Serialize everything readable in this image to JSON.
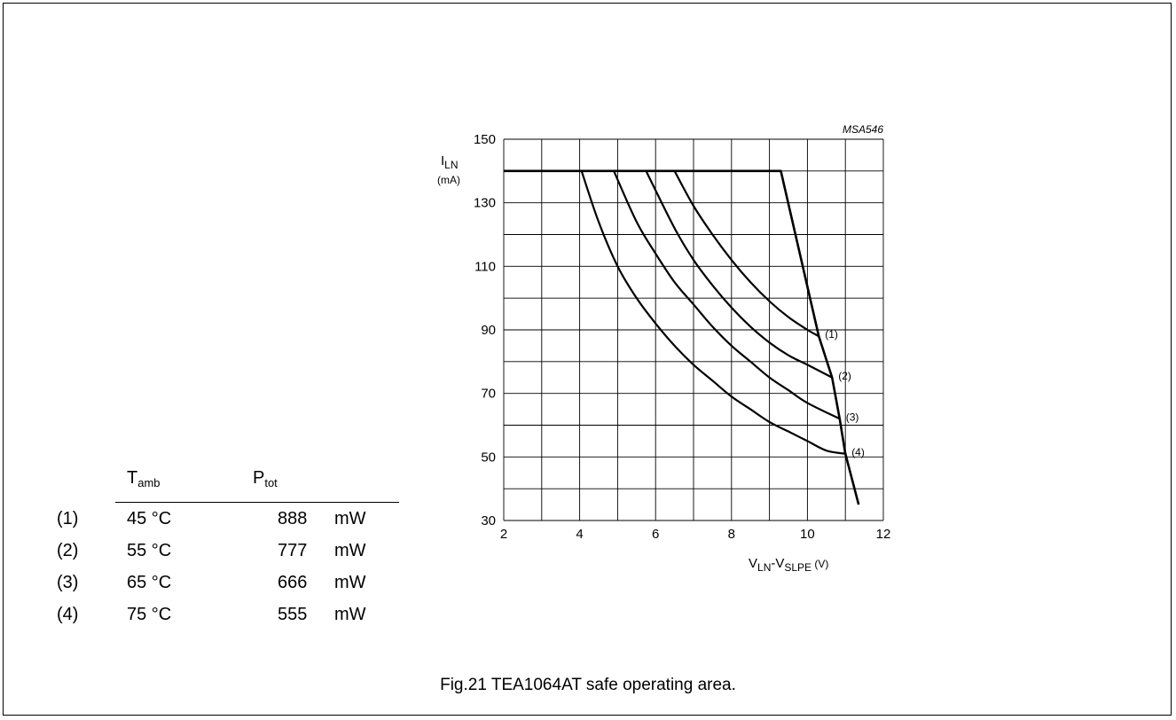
{
  "chart_data": {
    "type": "line",
    "title": "",
    "code": "MSA546",
    "ylabel": {
      "main": "I",
      "sub": "LN",
      "unit": "(mA)"
    },
    "xlabel": {
      "v1": "V",
      "sub1": "LN",
      "sep": "-V",
      "sub2": "SLPE",
      "unit": " (V)"
    },
    "xlim": [
      2,
      12
    ],
    "ylim": [
      30,
      150
    ],
    "x_ticks": [
      2,
      4,
      6,
      8,
      10,
      12
    ],
    "y_ticks": [
      150,
      130,
      110,
      90,
      70,
      50,
      30
    ],
    "grid": true,
    "limit_line": {
      "x": [
        2,
        9.3,
        10.3,
        10.65,
        10.85,
        11.0,
        11.35
      ],
      "y": [
        140,
        140,
        88,
        75,
        62,
        51,
        35
      ]
    },
    "series": [
      {
        "name": "(1)",
        "x": [
          6.5,
          7.0,
          7.5,
          8.0,
          8.5,
          9.0,
          9.5,
          10.0,
          10.3
        ],
        "y": [
          140,
          129,
          120,
          112,
          105,
          99,
          94,
          90,
          88
        ]
      },
      {
        "name": "(2)",
        "x": [
          5.75,
          6.5,
          7.0,
          7.5,
          8.0,
          8.5,
          9.0,
          9.5,
          10.0,
          10.65
        ],
        "y": [
          140,
          122,
          112,
          104,
          97,
          91,
          86,
          82,
          79,
          75
        ]
      },
      {
        "name": "(3)",
        "x": [
          4.9,
          5.5,
          6.0,
          6.5,
          7.0,
          7.5,
          8.0,
          8.5,
          9.0,
          9.5,
          10.0,
          10.85
        ],
        "y": [
          140,
          124,
          114,
          105,
          98,
          91,
          85,
          80,
          75,
          71,
          67,
          62
        ]
      },
      {
        "name": "(4)",
        "x": [
          4.05,
          4.5,
          5.0,
          5.5,
          6.0,
          6.5,
          7.0,
          7.5,
          8.0,
          8.5,
          9.0,
          9.5,
          10.0,
          10.5,
          11.0
        ],
        "y": [
          140,
          124,
          110,
          100,
          92,
          85,
          79,
          74,
          69,
          65,
          61,
          58,
          55,
          52,
          51
        ]
      }
    ]
  },
  "legend": {
    "head_t": "T",
    "head_t_sub": "amb",
    "head_p": "P",
    "head_p_sub": "tot",
    "rows": [
      {
        "id": "(1)",
        "temp": "45 °C",
        "power": "888",
        "unit": "mW"
      },
      {
        "id": "(2)",
        "temp": "55 °C",
        "power": "777",
        "unit": "mW"
      },
      {
        "id": "(3)",
        "temp": "65 °C",
        "power": "666",
        "unit": "mW"
      },
      {
        "id": "(4)",
        "temp": "75 °C",
        "power": "555",
        "unit": "mW"
      }
    ]
  },
  "caption": "Fig.21  TEA1064AT safe operating area."
}
